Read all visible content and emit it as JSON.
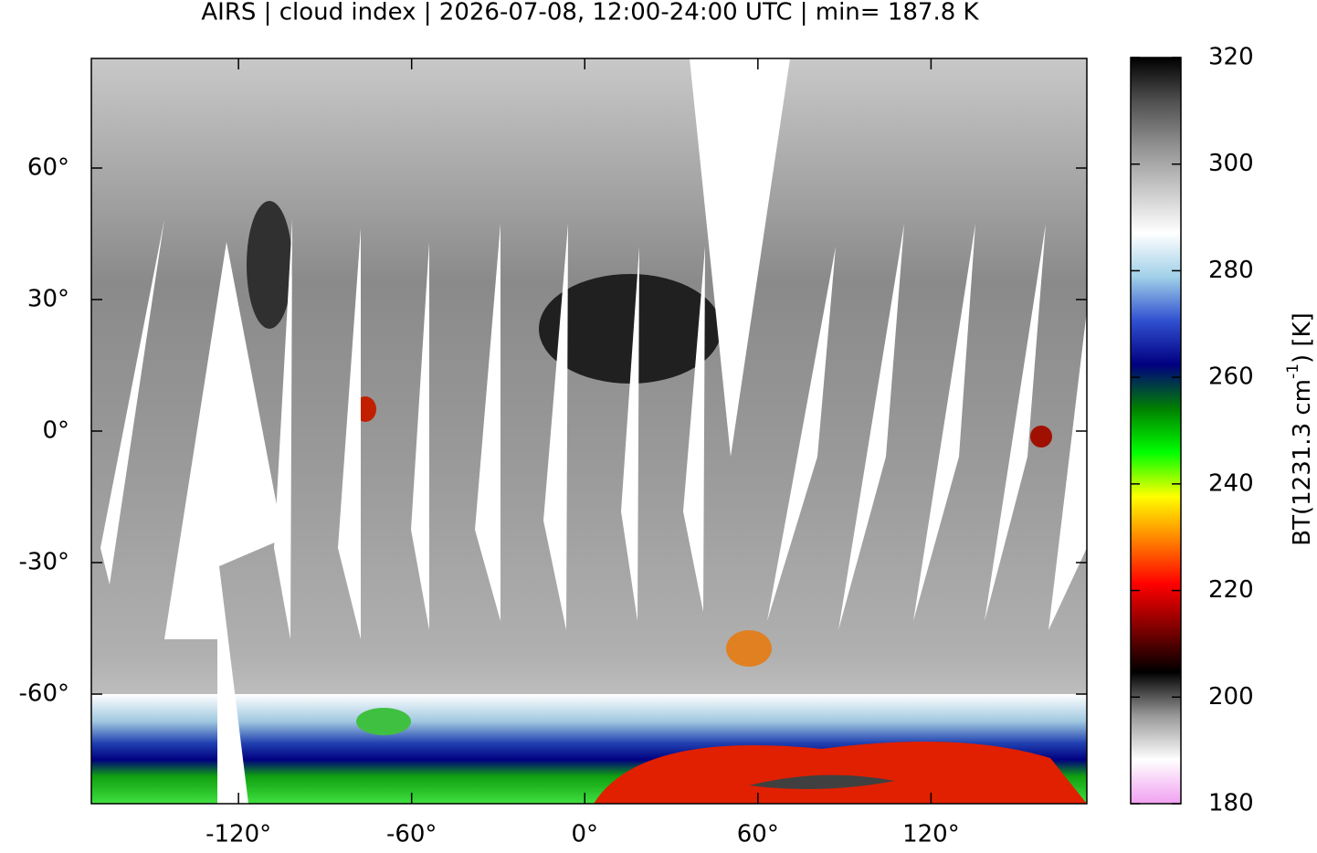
{
  "chart_data": {
    "type": "map",
    "title": "AIRS | cloud index | 2026-07-08, 12:00-24:00 UTC | min= 187.8 K",
    "xlim": [
      -171,
      174
    ],
    "ylim": [
      -85,
      85
    ],
    "xticks": [
      {
        "value": -120,
        "label": "-120°"
      },
      {
        "value": -60,
        "label": "-60°"
      },
      {
        "value": 0,
        "label": "0°"
      },
      {
        "value": 60,
        "label": "60°"
      },
      {
        "value": 120,
        "label": "120°"
      }
    ],
    "yticks": [
      {
        "value": 60,
        "label": "60°"
      },
      {
        "value": 30,
        "label": "30°"
      },
      {
        "value": 0,
        "label": "0°"
      },
      {
        "value": -30,
        "label": "-30°"
      },
      {
        "value": -60,
        "label": "-60°"
      }
    ],
    "colorbar": {
      "label_parts": [
        "BT(1231.3 cm",
        "-1",
        ") [K]"
      ],
      "lim": [
        180,
        320
      ],
      "ticks": [
        180,
        200,
        220,
        240,
        260,
        280,
        300,
        320
      ],
      "colormap": [
        "#f0a0f0",
        "#ffffff",
        "#999999",
        "#000000",
        "#800000",
        "#ff0000",
        "#ff8000",
        "#ffff00",
        "#00ff00",
        "#008000",
        "#000080",
        "#3050d0",
        "#a0d0e8",
        "#ffffff",
        "#c8c8c8",
        "#909090",
        "#505050",
        "#000000"
      ]
    }
  }
}
